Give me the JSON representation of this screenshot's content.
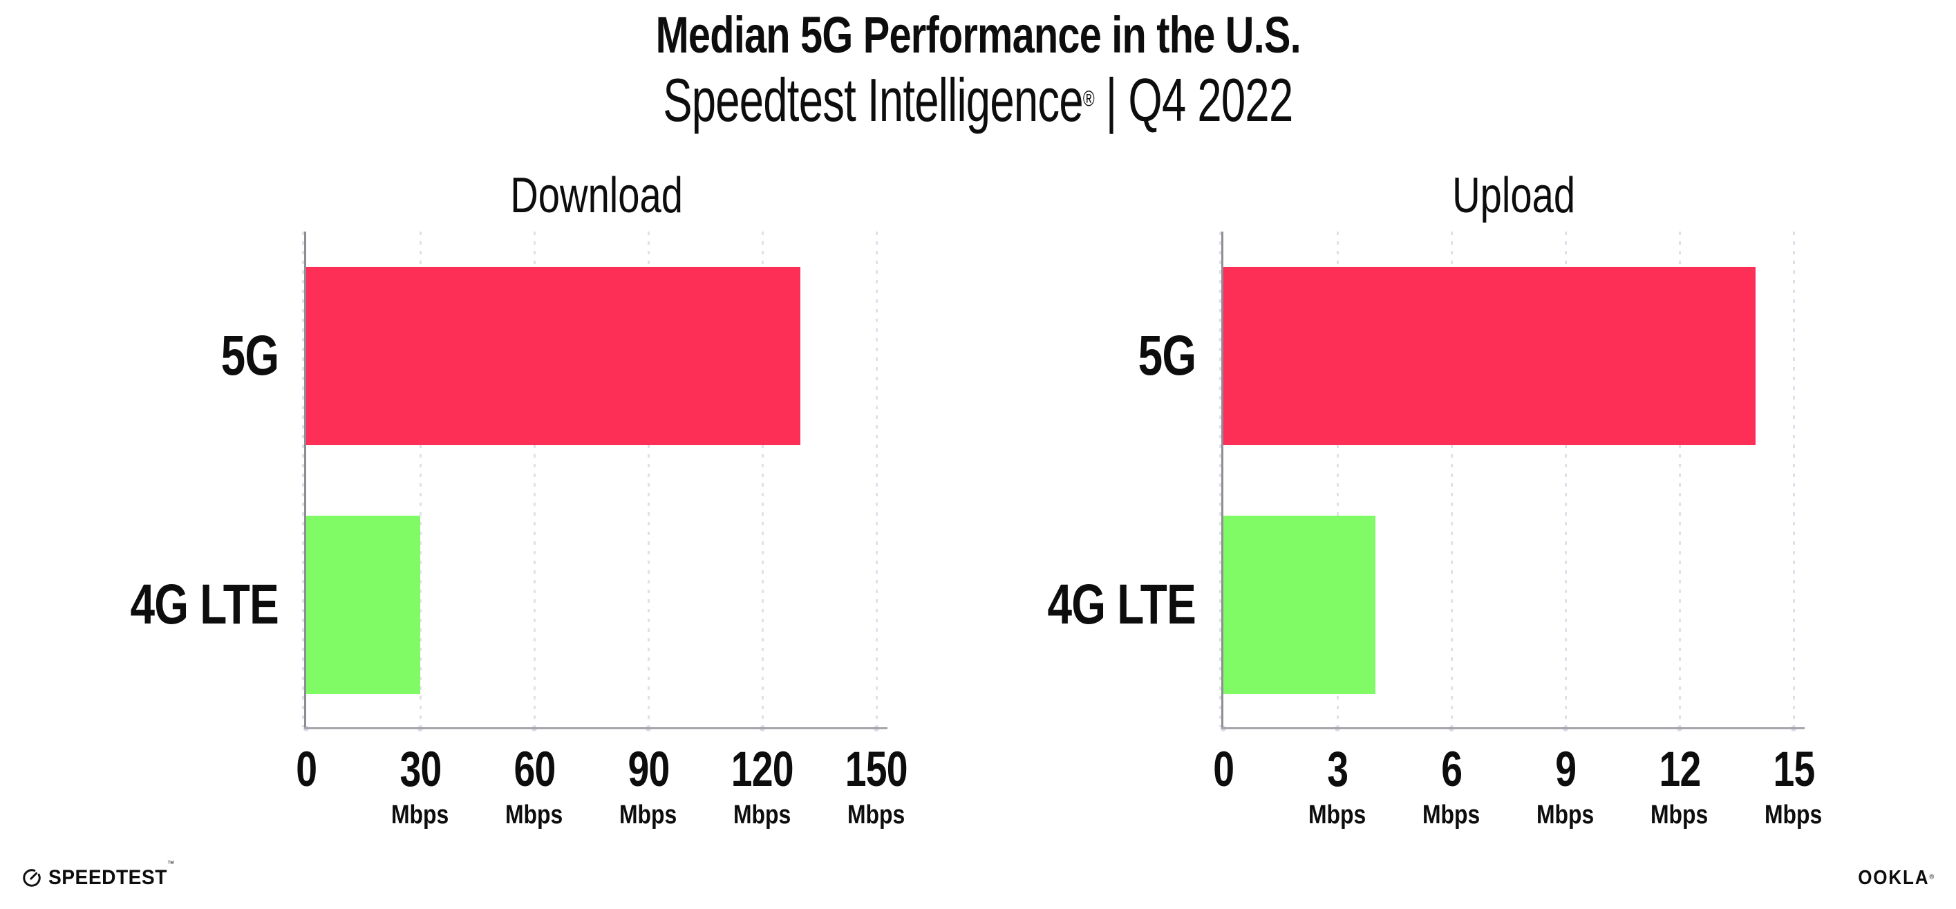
{
  "header": {
    "title": "Median 5G Performance in the U.S.",
    "subtitle_product": "Speedtest Intelligence",
    "subtitle_reg": "®",
    "subtitle_rest": " | Q4 2022"
  },
  "chart_data": [
    {
      "type": "bar",
      "orientation": "horizontal",
      "title": "Download",
      "categories": [
        "5G",
        "4G LTE"
      ],
      "values": [
        130,
        30
      ],
      "unit": "Mbps",
      "ticks": [
        0,
        30,
        60,
        90,
        120,
        150
      ],
      "xlim": [
        0,
        153
      ],
      "bar_colors": [
        "#fd2f56",
        "#80fb66"
      ],
      "grid": "vertical-dotted",
      "legend": "none"
    },
    {
      "type": "bar",
      "orientation": "horizontal",
      "title": "Upload",
      "categories": [
        "5G",
        "4G LTE"
      ],
      "values": [
        14,
        4
      ],
      "unit": "Mbps",
      "ticks": [
        0,
        3,
        6,
        9,
        12,
        15
      ],
      "xlim": [
        0,
        15.3
      ],
      "bar_colors": [
        "#fd2f56",
        "#80fb66"
      ],
      "grid": "vertical-dotted",
      "legend": "none"
    }
  ],
  "footer": {
    "speedtest_label": "SPEEDTEST",
    "speedtest_tm": "™",
    "ookla_label": "OOKLA",
    "ookla_reg": "®"
  },
  "colors": {
    "background": "#ffffff",
    "bar_5g": "#fd2f56",
    "bar_4g_lte": "#80fb66",
    "gridline": "#dfe0ec",
    "axis_spine": "#8d8d94",
    "axis_baseline": "#a5a5ab",
    "text": "#0d0d0d"
  }
}
